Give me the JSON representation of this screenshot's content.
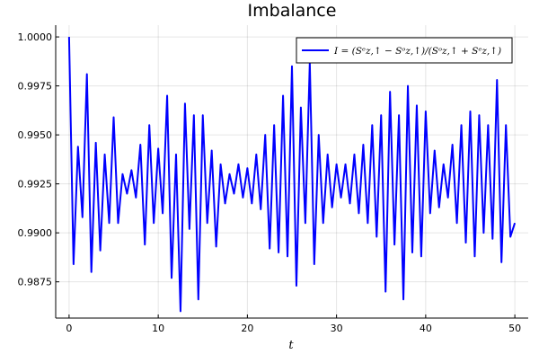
{
  "chart_data": {
    "type": "line",
    "title": "Imbalance",
    "x_label": "t",
    "x": [
      0,
      0.5,
      1,
      1.5,
      2,
      2.5,
      3,
      3.5,
      4,
      4.5,
      5,
      5.5,
      6,
      6.5,
      7,
      7.5,
      8,
      8.5,
      9,
      9.5,
      10,
      10.5,
      11,
      11.5,
      12,
      12.5,
      13,
      13.5,
      14,
      14.5,
      15,
      15.5,
      16,
      16.5,
      17,
      17.5,
      18,
      18.5,
      19,
      19.5,
      20,
      20.5,
      21,
      21.5,
      22,
      22.5,
      23,
      23.5,
      24,
      24.5,
      25,
      25.5,
      26,
      26.5,
      27,
      27.5,
      28,
      28.5,
      29,
      29.5,
      30,
      30.5,
      31,
      31.5,
      32,
      32.5,
      33,
      33.5,
      34,
      34.5,
      35,
      35.5,
      36,
      36.5,
      37,
      37.5,
      38,
      38.5,
      39,
      39.5,
      40,
      40.5,
      41,
      41.5,
      42,
      42.5,
      43,
      43.5,
      44,
      44.5,
      45,
      45.5,
      46,
      46.5,
      47,
      47.5,
      48,
      48.5,
      49,
      49.5,
      50
    ],
    "series": [
      {
        "name": "I = (Sᵉz,↑ − Sᵒz,↑)/(Sᵒz,↑ + Sᵉz,↑)",
        "color": "#0000ff",
        "values": [
          1.0,
          0.9884,
          0.9944,
          0.9908,
          0.9981,
          0.988,
          0.9946,
          0.9891,
          0.994,
          0.9905,
          0.9959,
          0.9905,
          0.993,
          0.992,
          0.9932,
          0.9918,
          0.9945,
          0.9894,
          0.9955,
          0.9905,
          0.9943,
          0.991,
          0.997,
          0.9877,
          0.994,
          0.986,
          0.9966,
          0.9902,
          0.996,
          0.9866,
          0.996,
          0.9905,
          0.9942,
          0.9893,
          0.9935,
          0.9915,
          0.993,
          0.992,
          0.9935,
          0.9918,
          0.9933,
          0.9915,
          0.994,
          0.9912,
          0.995,
          0.9892,
          0.9955,
          0.989,
          0.997,
          0.9888,
          0.9985,
          0.9873,
          0.9964,
          0.9905,
          0.9987,
          0.9884,
          0.995,
          0.9905,
          0.994,
          0.9913,
          0.9935,
          0.9918,
          0.9935,
          0.9915,
          0.994,
          0.991,
          0.9945,
          0.9905,
          0.9955,
          0.9898,
          0.996,
          0.987,
          0.9972,
          0.9894,
          0.996,
          0.9866,
          0.9975,
          0.989,
          0.9965,
          0.9888,
          0.9962,
          0.991,
          0.9942,
          0.9913,
          0.9935,
          0.9918,
          0.9945,
          0.9905,
          0.9955,
          0.9895,
          0.9962,
          0.9888,
          0.996,
          0.99,
          0.9955,
          0.9897,
          0.9978,
          0.9885,
          0.9955,
          0.9898,
          0.9905
        ]
      }
    ],
    "xlim": [
      -1.5,
      51.5
    ],
    "xticks": [
      0,
      10,
      20,
      30,
      40,
      50
    ],
    "ylim": [
      0.98565,
      1.0006
    ],
    "yticks": [
      {
        "value": 0.9875,
        "label": "0.9875"
      },
      {
        "value": 0.99,
        "label": "0.9900"
      },
      {
        "value": 0.9925,
        "label": "0.9925"
      },
      {
        "value": 0.995,
        "label": "0.9950"
      },
      {
        "value": 0.9975,
        "label": "0.9975"
      },
      {
        "value": 1,
        "label": "1.0000"
      }
    ],
    "grid": true,
    "legend": "top-right"
  }
}
